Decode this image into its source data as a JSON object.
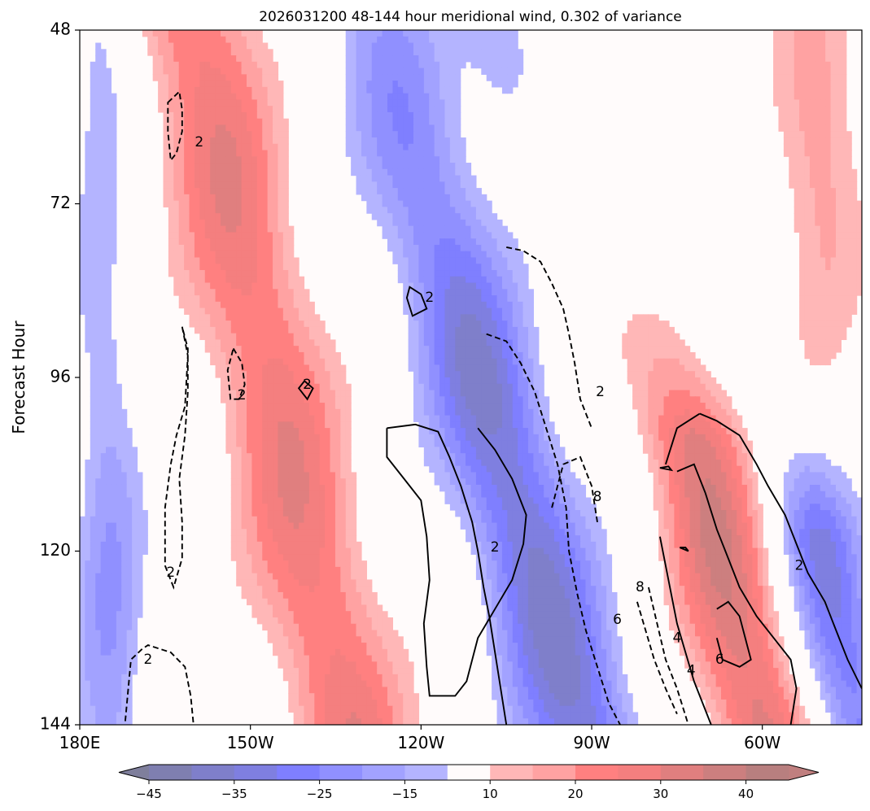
{
  "chart_data": {
    "type": "heatmap",
    "title": "2026031200 48-144 hour meridional wind, 0.302 of variance",
    "ylabel": "Forecast Hour",
    "xlabel": "",
    "x_ticks": [
      {
        "value": 180,
        "label": "180E"
      },
      {
        "value": 210,
        "label": "150W"
      },
      {
        "value": 240,
        "label": "120W"
      },
      {
        "value": 270,
        "label": "90W"
      },
      {
        "value": 300,
        "label": "60W"
      }
    ],
    "xlim": [
      180,
      317.5
    ],
    "y_ticks": [
      48,
      72,
      96,
      120,
      144
    ],
    "ylim": [
      48,
      144
    ],
    "y_inverted": true,
    "colorbar": {
      "levels": [
        -45,
        -40,
        -35,
        -30,
        -25,
        -20,
        -15,
        -10,
        10,
        15,
        20,
        25,
        30,
        35,
        40,
        45
      ],
      "tick_values": [
        -45,
        -35,
        -25,
        -15,
        10,
        20,
        30,
        40
      ],
      "tick_labels": [
        "−45",
        "−35",
        "−25",
        "−15",
        "10",
        "20",
        "30",
        "40"
      ],
      "extend": "both",
      "colors": [
        "#7f7fb0",
        "#7f7fca",
        "#7f7fe0",
        "#7f7fff",
        "#9090ff",
        "#a2a2ff",
        "#b4b4ff",
        "#fffbfb",
        "#ffb7b7",
        "#ffa2a2",
        "#ff8080",
        "#f47f7f",
        "#e07f7f",
        "#cc7f7f",
        "#b87f7f"
      ],
      "under_color": "#7f7f9c",
      "over_color": "#c07f7f"
    },
    "contour_labels": [
      {
        "text": "2",
        "lon": 201.0,
        "hour": 63.5
      },
      {
        "text": "2",
        "lon": 208.5,
        "hour": 98.5
      },
      {
        "text": "2",
        "lon": 220.0,
        "hour": 97.0
      },
      {
        "text": "2",
        "lon": 241.5,
        "hour": 85.0
      },
      {
        "text": "2",
        "lon": 196.0,
        "hour": 123.0
      },
      {
        "text": "2",
        "lon": 192.0,
        "hour": 135.0
      },
      {
        "text": "2",
        "lon": 253.0,
        "hour": 119.5
      },
      {
        "text": "2",
        "lon": 271.5,
        "hour": 98.0
      },
      {
        "text": "8",
        "lon": 271.0,
        "hour": 112.5
      },
      {
        "text": "8",
        "lon": 278.5,
        "hour": 125.0
      },
      {
        "text": "6",
        "lon": 274.5,
        "hour": 129.5
      },
      {
        "text": "4",
        "lon": 285.0,
        "hour": 132.0
      },
      {
        "text": "4",
        "lon": 287.5,
        "hour": 136.5
      },
      {
        "text": "6",
        "lon": 292.5,
        "hour": 135.0
      },
      {
        "text": "2",
        "lon": 306.5,
        "hour": 122.0
      }
    ]
  }
}
